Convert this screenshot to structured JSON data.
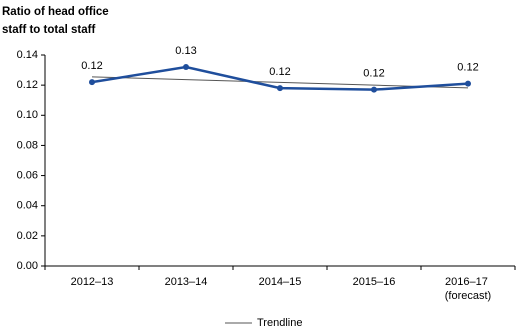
{
  "chart_data": {
    "type": "line",
    "title": "Ratio of head office staff to total staff",
    "categories": [
      "2012–13",
      "2013–14",
      "2014–15",
      "2015–16",
      "2016–17 (forecast)"
    ],
    "series": [
      {
        "color": "#1f4e9c",
        "values": [
          0.122,
          0.132,
          0.118,
          0.117,
          0.121
        ],
        "value_labels": [
          "0.12",
          "0.13",
          "0.12",
          "0.12",
          "0.12"
        ]
      },
      {
        "name": "Trendline",
        "color": "#555555",
        "values": [
          0.1255,
          0.1237,
          0.1218,
          0.12,
          0.1182
        ]
      }
    ],
    "ylim": [
      0,
      0.14
    ],
    "yticks": [
      {
        "value": 0,
        "label": "0.00"
      },
      {
        "value": 0.02,
        "label": "0.02"
      },
      {
        "value": 0.04,
        "label": "0.04"
      },
      {
        "value": 0.06,
        "label": "0.06"
      },
      {
        "value": 0.08,
        "label": "0.08"
      },
      {
        "value": 0.1,
        "label": "0.10"
      },
      {
        "value": 0.12,
        "label": "0.12"
      },
      {
        "value": 0.14,
        "label": "0.14"
      }
    ],
    "legend": "bottom"
  }
}
